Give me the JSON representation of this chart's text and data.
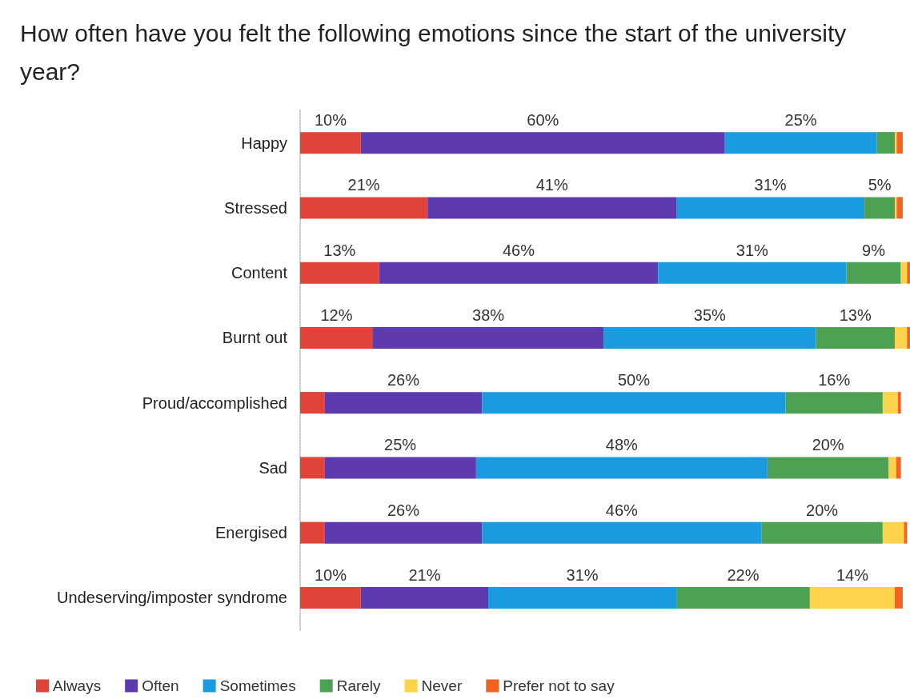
{
  "chart_data": {
    "type": "bar",
    "orientation": "horizontal",
    "stacked": true,
    "title": "How often have you felt the following emotions since the start of the university year?",
    "categories": [
      "Happy",
      "Stressed",
      "Content",
      "Burnt out",
      "Proud/accomplished",
      "Sad",
      "Energised",
      "Undeserving/imposter syndrome"
    ],
    "tick_labels": "y",
    "grid": false,
    "legend": "bottom",
    "series": [
      {
        "name": "Always",
        "color": "#e04337",
        "values": [
          10,
          21,
          13,
          12,
          4,
          4,
          4,
          10
        ],
        "value_labels": [
          "10%",
          "21%",
          "13%",
          "12%",
          null,
          null,
          null,
          "10%"
        ]
      },
      {
        "name": "Often",
        "color": "#5e3aaf",
        "values": [
          60,
          41,
          46,
          38,
          26,
          25,
          26,
          21
        ],
        "value_labels": [
          "60%",
          "41%",
          "46%",
          "38%",
          "26%",
          "25%",
          "26%",
          "21%"
        ]
      },
      {
        "name": "Sometimes",
        "color": "#1a9be0",
        "values": [
          25,
          31,
          31,
          35,
          50,
          48,
          46,
          31
        ],
        "value_labels": [
          "25%",
          "31%",
          "31%",
          "35%",
          "50%",
          "48%",
          "46%",
          "31%"
        ]
      },
      {
        "name": "Rarely",
        "color": "#4ea153",
        "values": [
          3,
          5,
          9,
          13,
          16,
          20,
          20,
          22
        ],
        "value_labels": [
          null,
          "5%",
          "9%",
          "13%",
          "16%",
          "20%",
          "20%",
          "22%"
        ]
      },
      {
        "name": "Never",
        "color": "#fcd34a",
        "values": [
          0.3,
          0.3,
          1,
          2,
          2.5,
          1.2,
          3.5,
          14
        ],
        "value_labels": [
          null,
          null,
          null,
          null,
          null,
          null,
          null,
          "14%"
        ]
      },
      {
        "name": "Prefer not to say",
        "color": "#f26322",
        "values": [
          1,
          1,
          0.5,
          0.5,
          0.5,
          0.8,
          0.5,
          1.3
        ],
        "value_labels": [
          null,
          null,
          null,
          null,
          null,
          null,
          null,
          null
        ]
      }
    ]
  }
}
